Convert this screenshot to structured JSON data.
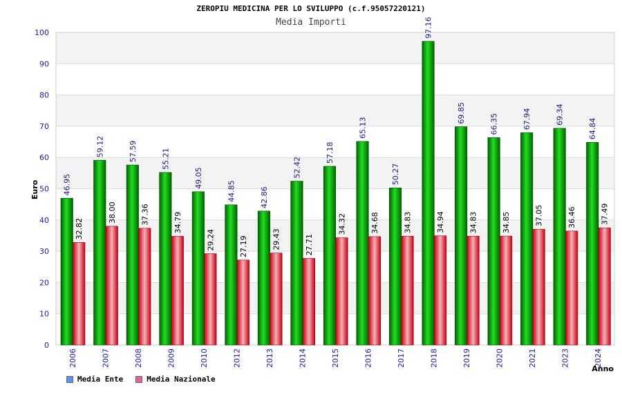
{
  "chart_data": {
    "type": "bar",
    "title": "ZEROPIU MEDICINA PER LO SVILUPPO (c.f.95057220121)",
    "subtitle": "Media Importi",
    "ylabel": "Euro",
    "xlabel": "Anno",
    "ylim": [
      0,
      100
    ],
    "yticks": [
      0,
      10,
      20,
      30,
      40,
      50,
      60,
      70,
      80,
      90,
      100
    ],
    "categories": [
      "2006",
      "2007",
      "2008",
      "2009",
      "2010",
      "2012",
      "2013",
      "2014",
      "2015",
      "2016",
      "2017",
      "2018",
      "2019",
      "2020",
      "2021",
      "2023",
      "2024"
    ],
    "series": [
      {
        "name": "Media Ente",
        "color": "#00b000",
        "legend_color": "#5599ee",
        "values": [
          46.95,
          59.12,
          57.59,
          55.21,
          49.05,
          44.85,
          42.86,
          52.42,
          57.18,
          65.13,
          50.27,
          97.16,
          69.85,
          66.35,
          67.94,
          69.34,
          64.84
        ],
        "labels": [
          "46.95",
          "59.12",
          "57.59",
          "55.21",
          "49.05",
          "44.85",
          "42.86",
          "52.42",
          "57.18",
          "65.13",
          "50.27",
          "97.16",
          "69.85",
          "66.35",
          "67.94",
          "69.34",
          "64.84"
        ]
      },
      {
        "name": "Media Nazionale",
        "color": "#e0303a",
        "legend_color": "#dd6699",
        "values": [
          32.82,
          38.0,
          37.36,
          34.79,
          29.24,
          27.19,
          29.43,
          27.71,
          34.32,
          34.68,
          34.83,
          34.94,
          34.83,
          34.85,
          37.05,
          36.46,
          37.49
        ],
        "labels": [
          "32.82",
          "38.00",
          "37.36",
          "34.79",
          "29.24",
          "27.19",
          "29.43",
          "27.71",
          "34.32",
          "34.68",
          "34.83",
          "34.94",
          "34.83",
          "34.85",
          "37.05",
          "36.46",
          "37.49"
        ]
      }
    ],
    "grid": true,
    "legend_position": "bottom-left"
  }
}
